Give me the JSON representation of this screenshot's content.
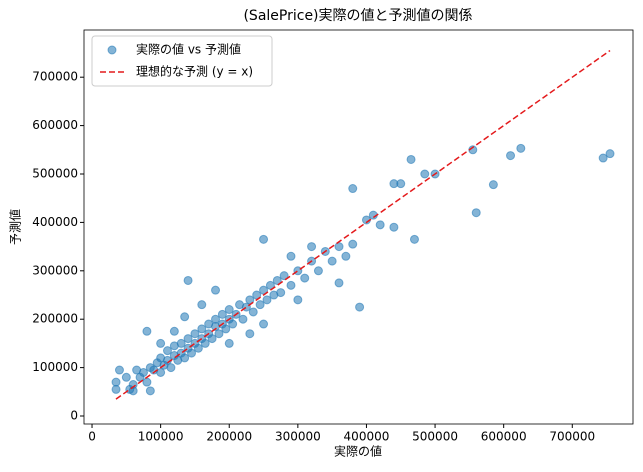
{
  "chart_data": {
    "type": "scatter",
    "title": "(SalePrice)実際の値と予測値の関係",
    "x_label": "実際の値",
    "y_label": "予測値",
    "xlim": [
      -11700,
      788500
    ],
    "ylim": [
      -16500,
      797500
    ],
    "xticks": [
      0,
      100000,
      200000,
      300000,
      400000,
      500000,
      600000,
      700000
    ],
    "yticks": [
      0,
      100000,
      200000,
      300000,
      400000,
      500000,
      600000,
      700000
    ],
    "legend": "upper left",
    "series": [
      {
        "name": "実際の値 vs 予測値",
        "type": "scatter",
        "color": "#1f77b4",
        "alpha": 0.55,
        "x": [
          35000,
          35000,
          40000,
          55000,
          60000,
          80000,
          85000,
          140000,
          250000,
          380000,
          390000,
          440000,
          465000,
          470000,
          485000,
          500000,
          555000,
          560000,
          585000,
          610000,
          625000,
          745000,
          755000,
          440000,
          450000,
          420000,
          410000,
          400000,
          380000,
          360000,
          60000,
          70000,
          75000,
          80000,
          85000,
          90000,
          95000,
          100000,
          100000,
          105000,
          110000,
          110000,
          115000,
          120000,
          120000,
          125000,
          130000,
          130000,
          135000,
          140000,
          140000,
          145000,
          150000,
          150000,
          155000,
          160000,
          160000,
          165000,
          170000,
          170000,
          175000,
          180000,
          180000,
          185000,
          190000,
          190000,
          195000,
          200000,
          200000,
          205000,
          210000,
          215000,
          220000,
          225000,
          230000,
          235000,
          240000,
          245000,
          250000,
          255000,
          260000,
          265000,
          270000,
          275000,
          280000,
          290000,
          300000,
          310000,
          320000,
          330000,
          340000,
          350000,
          360000,
          370000,
          160000,
          180000,
          200000,
          230000,
          250000,
          300000,
          320000,
          290000,
          120000,
          135000,
          100000,
          65000,
          50000
        ],
        "values": [
          70000,
          55000,
          95000,
          55000,
          52000,
          175000,
          52000,
          280000,
          365000,
          470000,
          225000,
          390000,
          530000,
          365000,
          500000,
          500000,
          550000,
          420000,
          478000,
          538000,
          553000,
          533000,
          542000,
          480000,
          480000,
          395000,
          415000,
          405000,
          355000,
          275000,
          65000,
          80000,
          90000,
          70000,
          100000,
          95000,
          110000,
          90000,
          120000,
          105000,
          115000,
          135000,
          100000,
          125000,
          145000,
          115000,
          130000,
          150000,
          120000,
          140000,
          160000,
          130000,
          150000,
          170000,
          140000,
          160000,
          180000,
          150000,
          170000,
          190000,
          160000,
          185000,
          200000,
          170000,
          190000,
          210000,
          180000,
          200000,
          220000,
          190000,
          210000,
          230000,
          200000,
          225000,
          240000,
          215000,
          250000,
          230000,
          260000,
          240000,
          270000,
          250000,
          280000,
          255000,
          290000,
          270000,
          300000,
          285000,
          320000,
          300000,
          340000,
          320000,
          350000,
          330000,
          230000,
          260000,
          150000,
          170000,
          190000,
          240000,
          350000,
          330000,
          175000,
          205000,
          150000,
          95000,
          80000
        ]
      },
      {
        "name": "理想的な予測 (y = x)",
        "type": "line",
        "color": "#e41a1c",
        "line_style": "dashed",
        "x": [
          34900,
          755000
        ],
        "values": [
          34900,
          755000
        ]
      }
    ]
  }
}
